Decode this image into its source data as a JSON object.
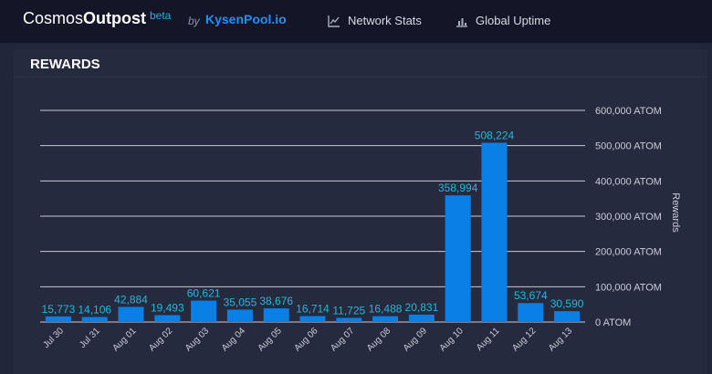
{
  "header": {
    "brand_prefix": "Cosmos",
    "brand_bold": "Outpost",
    "beta": "beta",
    "by": "by",
    "pool": "KysenPool.io",
    "nav": [
      {
        "label": "Network Stats",
        "icon": "line-chart-icon"
      },
      {
        "label": "Global Uptime",
        "icon": "bar-chart-icon"
      }
    ]
  },
  "panel": {
    "title": "REWARDS"
  },
  "colors": {
    "bar": "#0a80e6",
    "label": "#22b8d8",
    "grid": "#c8cbd6",
    "axis_text": "#c9ccd8"
  },
  "chart_data": {
    "type": "bar",
    "title": "",
    "ylabel": "Rewards",
    "ylim": [
      0,
      600000
    ],
    "yticks": [
      "0 ATOM",
      "100,000 ATOM",
      "200,000 ATOM",
      "300,000 ATOM",
      "400,000 ATOM",
      "500,000 ATOM",
      "600,000 ATOM"
    ],
    "categories": [
      "Jul 30",
      "Jul 31",
      "Aug 01",
      "Aug 02",
      "Aug 03",
      "Aug 04",
      "Aug 05",
      "Aug 06",
      "Aug 07",
      "Aug 08",
      "Aug 09",
      "Aug 10",
      "Aug 11",
      "Aug 12",
      "Aug 13"
    ],
    "values": [
      15773,
      14106,
      42884,
      19493,
      60621,
      35055,
      38676,
      16714,
      11725,
      16488,
      20831,
      358994,
      508224,
      53674,
      30590
    ],
    "value_labels": [
      "15,773",
      "14,106",
      "42,884",
      "19,493",
      "60,621",
      "35,055",
      "38,676",
      "16,714",
      "11,725",
      "16,488",
      "20,831",
      "358,994",
      "508,224",
      "53,674",
      "30,590"
    ]
  }
}
